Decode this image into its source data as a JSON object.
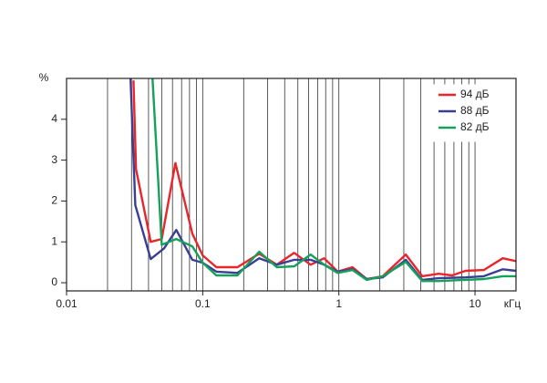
{
  "chart_data": {
    "type": "line",
    "y_label": "%",
    "x_label": "кГц",
    "xscale": "log",
    "xlim": [
      0.01,
      20
    ],
    "xticks": [
      0.01,
      0.1,
      1,
      10
    ],
    "x_minor_ticks": [
      0.02,
      0.03,
      0.04,
      0.05,
      0.06,
      0.07,
      0.08,
      0.09,
      0.2,
      0.3,
      0.4,
      0.5,
      0.6,
      0.7,
      0.8,
      0.9,
      2,
      3,
      4,
      5,
      6,
      7,
      8,
      9
    ],
    "ylim": [
      -0.2,
      5
    ],
    "yticks": [
      0,
      1,
      2,
      3,
      4
    ],
    "grid": true,
    "legend": "upper right",
    "series": [
      {
        "name": "94 дБ",
        "color": "#e8262b",
        "x": [
          0.031,
          0.0324,
          0.0415,
          0.05,
          0.063,
          0.084,
          0.1,
          0.126,
          0.18,
          0.26,
          0.35,
          0.47,
          0.62,
          0.78,
          0.98,
          1.26,
          1.6,
          2.1,
          3.1,
          4.1,
          5.4,
          6.8,
          8.5,
          11.6,
          16,
          20
        ],
        "values": [
          4.95,
          2.78,
          1.0,
          1.07,
          2.93,
          1.2,
          0.67,
          0.38,
          0.38,
          0.71,
          0.44,
          0.73,
          0.44,
          0.6,
          0.27,
          0.38,
          0.09,
          0.16,
          0.69,
          0.16,
          0.22,
          0.18,
          0.29,
          0.31,
          0.6,
          0.53
        ]
      },
      {
        "name": "88 дБ",
        "color": "#3a3f94",
        "x": [
          0.0295,
          0.032,
          0.0415,
          0.052,
          0.064,
          0.084,
          0.1,
          0.126,
          0.18,
          0.26,
          0.35,
          0.47,
          0.62,
          0.78,
          0.98,
          1.26,
          1.6,
          2.1,
          3.1,
          4.1,
          5.4,
          8.5,
          11.6,
          16,
          20
        ],
        "values": [
          5,
          1.9,
          0.58,
          0.84,
          1.29,
          0.56,
          0.49,
          0.27,
          0.24,
          0.6,
          0.44,
          0.56,
          0.56,
          0.44,
          0.27,
          0.33,
          0.09,
          0.13,
          0.56,
          0.07,
          0.11,
          0.13,
          0.16,
          0.33,
          0.29
        ]
      },
      {
        "name": "82 дБ",
        "color": "#16a05a",
        "x": [
          0.0428,
          0.05,
          0.064,
          0.084,
          0.1,
          0.126,
          0.18,
          0.26,
          0.35,
          0.47,
          0.62,
          0.78,
          0.98,
          1.26,
          1.6,
          2.1,
          3.1,
          4.1,
          5.4,
          8.5,
          11.6,
          16,
          20
        ],
        "values": [
          5,
          0.93,
          1.07,
          0.89,
          0.49,
          0.18,
          0.18,
          0.76,
          0.38,
          0.4,
          0.69,
          0.44,
          0.24,
          0.31,
          0.07,
          0.16,
          0.51,
          0.04,
          0.04,
          0.07,
          0.09,
          0.16,
          0.16
        ]
      }
    ]
  }
}
